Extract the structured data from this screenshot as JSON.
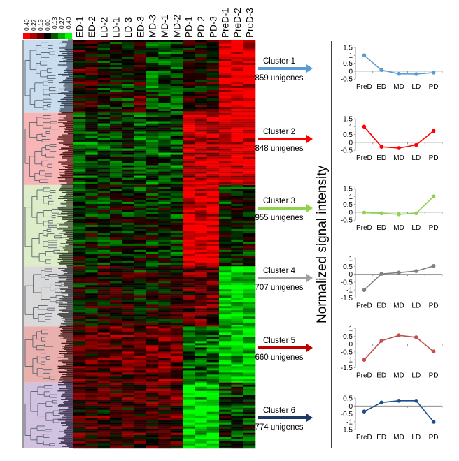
{
  "color_scale": {
    "labels": [
      "0.40",
      "0.27",
      "0.13",
      "0.00",
      "-0.13",
      "-0.27",
      "-0.40"
    ],
    "colors": [
      "#ff0000",
      "#b00000",
      "#600000",
      "#000000",
      "#005a00",
      "#00b000",
      "#00ff00"
    ]
  },
  "heatmap": {
    "columns": [
      "ED-1",
      "ED-2",
      "LD-2",
      "LD-1",
      "LD-3",
      "ED-3",
      "MD-3",
      "MD-1",
      "MD-2",
      "PD-1",
      "PD-2",
      "PD-3",
      "PreD-1",
      "PreD-2",
      "PreD-3"
    ],
    "column_groups": [
      "ED",
      "ED",
      "LD",
      "LD",
      "LD",
      "ED",
      "MD",
      "MD",
      "MD",
      "PD",
      "PD",
      "PD",
      "PreD",
      "PreD",
      "PreD"
    ]
  },
  "clusters": [
    {
      "label": "Cluster 1",
      "count_label": "859 unigenes",
      "unigenes": 859,
      "color": "#5b9bd5",
      "dendro_bg": "#c9ddef",
      "dendro_tip": "#1f2d3d"
    },
    {
      "label": "Cluster 2",
      "count_label": "848 unigenes",
      "unigenes": 848,
      "color": "#ff0000",
      "dendro_bg": "#f8b5b5",
      "dendro_tip": "#3b0000"
    },
    {
      "label": "Cluster 3",
      "count_label": "955 unigenes",
      "unigenes": 955,
      "color": "#8fd24b",
      "dendro_bg": "#dcedc8",
      "dendro_tip": "#1f2d14"
    },
    {
      "label": "Cluster 4",
      "count_label": "707 unigenes",
      "unigenes": 707,
      "color": "#a0a0a0",
      "dendro_bg": "#d9d9d9",
      "dendro_tip": "#222222"
    },
    {
      "label": "Cluster 5",
      "count_label": "660 unigenes",
      "unigenes": 660,
      "color": "#c00000",
      "dendro_bg": "#e9b0ae",
      "dendro_tip": "#2a0000"
    },
    {
      "label": "Cluster 6",
      "count_label": "774 unigenes",
      "unigenes": 774,
      "color": "#1f3864",
      "dendro_bg": "#d2c2e2",
      "dendro_tip": "#1c1330"
    }
  ],
  "y_axis_label": "Normalized signal intensity",
  "chart_data": [
    {
      "type": "line",
      "title": "Cluster 1",
      "x": [
        "PreD",
        "ED",
        "MD",
        "LD",
        "PD"
      ],
      "values": [
        1.0,
        0.07,
        -0.17,
        -0.18,
        -0.09
      ],
      "yticks": [
        "1.5",
        "1",
        "0.5",
        "0",
        "-0.5"
      ],
      "ylim": [
        -0.5,
        1.5
      ],
      "color": "#5b9bd5"
    },
    {
      "type": "line",
      "title": "Cluster 2",
      "x": [
        "PreD",
        "ED",
        "MD",
        "LD",
        "PD"
      ],
      "values": [
        1.0,
        -0.28,
        -0.36,
        -0.16,
        0.73
      ],
      "yticks": [
        "1.5",
        "1",
        "0.5",
        "0",
        "-0.5"
      ],
      "ylim": [
        -0.5,
        1.5
      ],
      "color": "#ff0000"
    },
    {
      "type": "line",
      "title": "Cluster 3",
      "x": [
        "PreD",
        "ED",
        "MD",
        "LD",
        "PD"
      ],
      "values": [
        -0.02,
        -0.06,
        -0.13,
        -0.06,
        1.0
      ],
      "yticks": [
        "1.5",
        "1",
        "0.5",
        "0",
        "-0.5"
      ],
      "ylim": [
        -0.5,
        1.5
      ],
      "color": "#8fd24b"
    },
    {
      "type": "line",
      "title": "Cluster 4",
      "x": [
        "PreD",
        "ED",
        "MD",
        "LD",
        "PD"
      ],
      "values": [
        -1.0,
        0.02,
        0.1,
        0.2,
        0.52
      ],
      "yticks": [
        "1",
        "0.5",
        "0",
        "-0.5",
        "-1",
        "-1.5"
      ],
      "ylim": [
        -1.5,
        1.0
      ],
      "color": "#808080"
    },
    {
      "type": "line",
      "title": "Cluster 5",
      "x": [
        "PreD",
        "ED",
        "MD",
        "LD",
        "PD"
      ],
      "values": [
        -1.0,
        0.21,
        0.55,
        0.43,
        -0.47
      ],
      "yticks": [
        "1",
        "0.5",
        "0",
        "-0.5",
        "-1",
        "-1.5"
      ],
      "ylim": [
        -1.5,
        1.0
      ],
      "color": "#c0504d"
    },
    {
      "type": "line",
      "title": "Cluster 6",
      "x": [
        "PreD",
        "ED",
        "MD",
        "LD",
        "PD"
      ],
      "values": [
        -0.35,
        0.22,
        0.33,
        0.33,
        -1.0
      ],
      "yticks": [
        "0.5",
        "0",
        "-0.5",
        "-1",
        "-1.5"
      ],
      "ylim": [
        -1.5,
        0.5
      ],
      "color": "#1f4e8c"
    }
  ]
}
